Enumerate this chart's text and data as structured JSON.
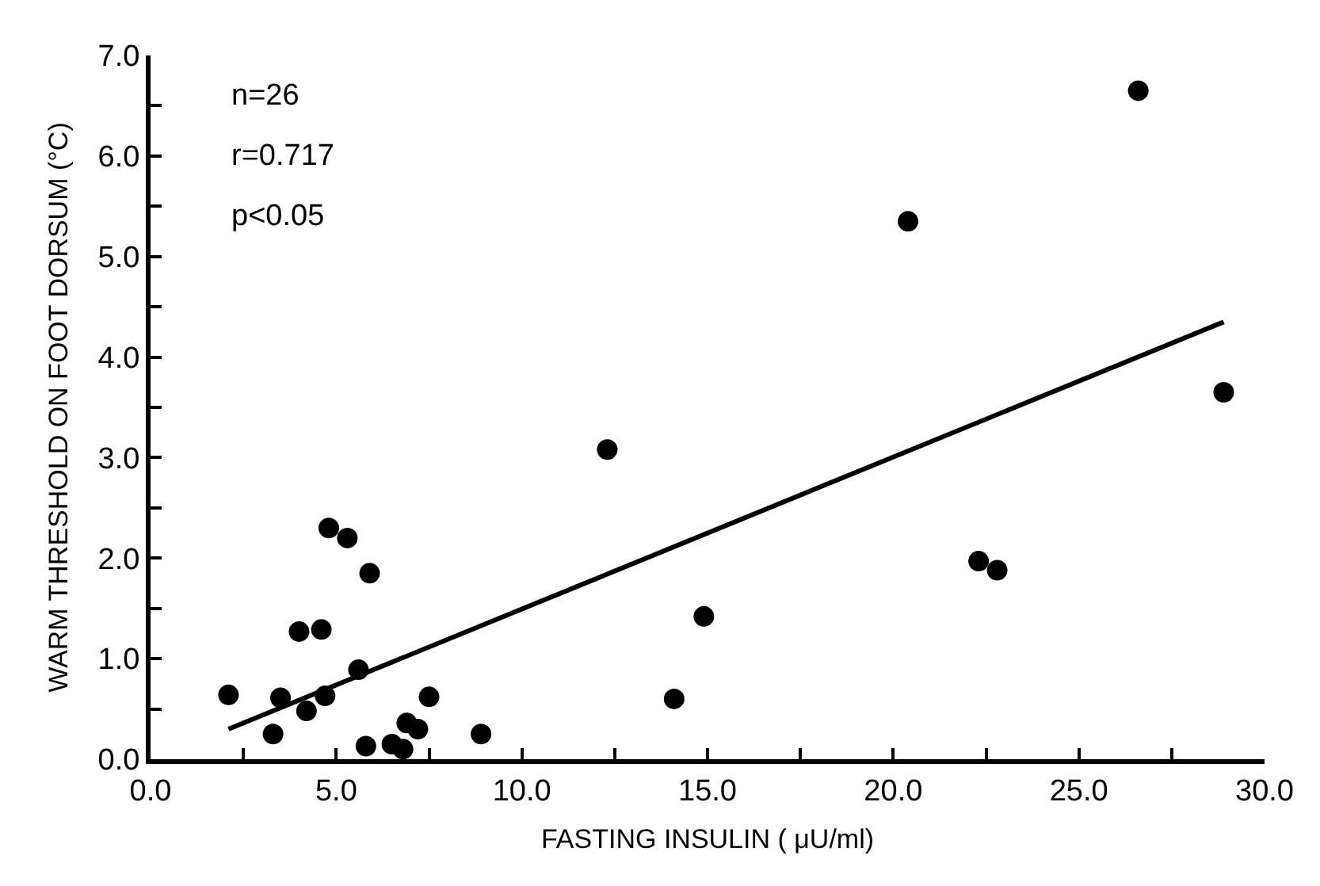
{
  "chart_data": {
    "type": "scatter",
    "xlabel": "FASTING INSULIN ( μU/ml)",
    "ylabel": "WARM THRESHOLD ON FOOT DORSUM (°C)",
    "annotations": [
      "n=26",
      "r=0.717",
      "p<0.05"
    ],
    "xlim": [
      0,
      30
    ],
    "ylim": [
      0,
      7
    ],
    "xticks": [
      {
        "value": 0,
        "label": "0.0"
      },
      {
        "value": 2.5,
        "label": null
      },
      {
        "value": 5,
        "label": "5.0"
      },
      {
        "value": 7.5,
        "label": null
      },
      {
        "value": 10,
        "label": "10.0"
      },
      {
        "value": 12.5,
        "label": null
      },
      {
        "value": 15,
        "label": "15.0"
      },
      {
        "value": 17.5,
        "label": null
      },
      {
        "value": 20,
        "label": "20.0"
      },
      {
        "value": 22.5,
        "label": null
      },
      {
        "value": 25,
        "label": "25.0"
      },
      {
        "value": 27.5,
        "label": null
      },
      {
        "value": 30,
        "label": "30.0"
      }
    ],
    "yticks": [
      {
        "value": 0,
        "label": "0.0"
      },
      {
        "value": 0.5,
        "label": null
      },
      {
        "value": 1,
        "label": "1.0"
      },
      {
        "value": 1.5,
        "label": null
      },
      {
        "value": 2,
        "label": "2.0"
      },
      {
        "value": 2.5,
        "label": null
      },
      {
        "value": 3,
        "label": "3.0"
      },
      {
        "value": 3.5,
        "label": null
      },
      {
        "value": 4,
        "label": "4.0"
      },
      {
        "value": 4.5,
        "label": null
      },
      {
        "value": 5,
        "label": "5.0"
      },
      {
        "value": 5.5,
        "label": null
      },
      {
        "value": 6,
        "label": "6.0"
      },
      {
        "value": 6.5,
        "label": null
      },
      {
        "value": 7,
        "label": "7.0"
      }
    ],
    "series": [
      {
        "color": "#000000",
        "marker": "circle",
        "x": [
          2.1,
          3.3,
          3.5,
          4.0,
          4.6,
          4.2,
          4.7,
          4.8,
          5.3,
          5.9,
          5.6,
          5.8,
          6.5,
          6.8,
          6.9,
          7.2,
          7.5,
          8.9,
          12.3,
          14.1,
          14.9,
          20.4,
          22.3,
          22.8,
          28.9,
          26.6
        ],
        "values": [
          0.64,
          0.25,
          0.61,
          1.27,
          1.29,
          0.48,
          0.63,
          2.3,
          2.2,
          1.85,
          0.89,
          0.13,
          0.15,
          0.1,
          0.36,
          0.3,
          0.62,
          0.25,
          3.08,
          0.6,
          1.42,
          5.35,
          1.97,
          1.88,
          3.65,
          6.65
        ]
      },
      {
        "type": "line",
        "color": "#000000",
        "marker": "none",
        "line_style": "solid",
        "x": [
          2.1,
          28.9
        ],
        "values": [
          0.3,
          4.35
        ]
      }
    ]
  }
}
